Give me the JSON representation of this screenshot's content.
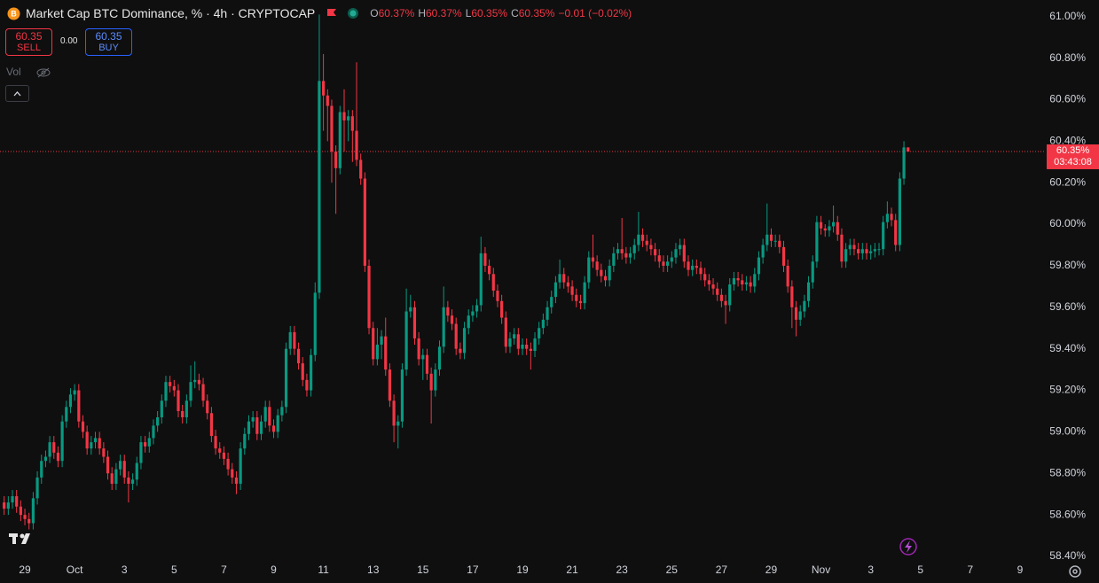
{
  "chart_data": {
    "type": "candlestick",
    "title": "Market Cap BTC Dominance, % · 4h · CRYPTOCAP",
    "header_ohlc": [
      {
        "key": "O",
        "value": "60.37%"
      },
      {
        "key": "H",
        "value": "60.37%"
      },
      {
        "key": "L",
        "value": "60.35%"
      },
      {
        "key": "C",
        "value": "60.35%"
      }
    ],
    "header_change": "−0.01 (−0.02%)",
    "sell": {
      "price": "60.35",
      "label": "SELL"
    },
    "spread": "0.00",
    "buy": {
      "price": "60.35",
      "label": "BUY"
    },
    "volume_label": "Vol",
    "last_price": {
      "value": 60.35,
      "label": "60.35%",
      "countdown": "03:43:08"
    },
    "up_color": "#089981",
    "down_color": "#f23645",
    "open": [
      58.66,
      58.63,
      58.66,
      58.69,
      58.64,
      58.6,
      58.58,
      58.56,
      58.68,
      58.78,
      58.86,
      58.88,
      58.95,
      58.9,
      58.86,
      59.05,
      59.12,
      59.18,
      59.2,
      59.05,
      59.0,
      58.92,
      58.95,
      58.97,
      58.92,
      58.88,
      58.8,
      58.75,
      58.82,
      58.86,
      58.78,
      58.75,
      58.77,
      58.85,
      58.95,
      58.93,
      58.97,
      59.03,
      59.07,
      59.15,
      59.24,
      59.22,
      59.2,
      59.1,
      59.07,
      59.15,
      59.24,
      59.25,
      59.23,
      59.15,
      59.09,
      58.98,
      58.92,
      58.9,
      58.87,
      58.82,
      58.78,
      58.75,
      58.92,
      58.99,
      59.05,
      59.07,
      58.99,
      59.05,
      59.12,
      59.03,
      59.0,
      59.08,
      59.12,
      59.4,
      59.48,
      59.4,
      59.33,
      59.25,
      59.2,
      59.37,
      59.67,
      60.69,
      60.62,
      60.57,
      60.35,
      60.27,
      60.54,
      60.5,
      60.52,
      60.45,
      60.31,
      60.22,
      59.8,
      59.5,
      59.35,
      59.42,
      59.46,
      59.3,
      59.15,
      59.03,
      59.05,
      59.3,
      59.58,
      59.6,
      59.45,
      59.35,
      59.37,
      59.28,
      59.2,
      59.3,
      59.41,
      59.6,
      59.56,
      59.52,
      59.4,
      59.38,
      59.5,
      59.56,
      59.58,
      59.61,
      59.86,
      59.8,
      59.76,
      59.68,
      59.63,
      59.55,
      59.41,
      59.45,
      59.47,
      59.4,
      59.42,
      59.4,
      59.39,
      59.45,
      59.5,
      59.54,
      59.6,
      59.65,
      59.72,
      59.76,
      59.72,
      59.7,
      59.66,
      59.63,
      59.62,
      59.72,
      59.84,
      59.82,
      59.78,
      59.75,
      59.73,
      59.8,
      59.86,
      59.88,
      59.86,
      59.84,
      59.86,
      59.9,
      59.95,
      59.92,
      59.9,
      59.88,
      59.85,
      59.82,
      59.8,
      59.82,
      59.84,
      59.88,
      59.9,
      59.82,
      59.78,
      59.8,
      59.79,
      59.76,
      59.73,
      59.71,
      59.69,
      59.66,
      59.63,
      59.61,
      59.71,
      59.74,
      59.73,
      59.71,
      59.72,
      59.7,
      59.76,
      59.84,
      59.9,
      59.95,
      59.92,
      59.92,
      59.89,
      59.8,
      59.7,
      59.6,
      59.54,
      59.58,
      59.63,
      59.72,
      59.82,
      60.01,
      59.98,
      59.97,
      59.99,
      60.01,
      59.95,
      59.82,
      59.88,
      59.9,
      59.88,
      59.86,
      59.88,
      59.86,
      59.87,
      59.88,
      59.88,
      60.01,
      60.05,
      60.02,
      59.9,
      60.22,
      60.37
    ],
    "high": [
      58.69,
      58.69,
      58.72,
      58.72,
      58.67,
      58.63,
      58.61,
      58.71,
      58.81,
      58.89,
      58.91,
      58.98,
      58.98,
      58.93,
      59.08,
      59.15,
      59.21,
      59.23,
      59.23,
      59.08,
      59.03,
      58.98,
      59.0,
      59.0,
      58.95,
      58.91,
      58.83,
      58.85,
      58.89,
      58.89,
      58.81,
      58.8,
      58.88,
      58.98,
      58.98,
      59.0,
      59.06,
      59.1,
      59.18,
      59.27,
      59.27,
      59.25,
      59.23,
      59.13,
      59.18,
      59.32,
      59.34,
      59.28,
      59.26,
      59.18,
      59.12,
      59.01,
      58.95,
      58.93,
      58.9,
      58.85,
      58.81,
      58.95,
      59.02,
      59.08,
      59.1,
      59.1,
      59.08,
      59.15,
      59.15,
      59.06,
      59.11,
      59.15,
      59.43,
      59.51,
      59.51,
      59.43,
      59.36,
      59.28,
      59.4,
      59.72,
      61.01,
      60.82,
      60.65,
      60.6,
      60.38,
      60.57,
      60.65,
      60.55,
      60.55,
      60.78,
      60.34,
      60.25,
      59.83,
      59.53,
      59.5,
      59.49,
      59.55,
      59.33,
      59.18,
      59.08,
      59.33,
      59.69,
      59.66,
      59.63,
      59.48,
      59.4,
      59.4,
      59.31,
      59.33,
      59.44,
      59.7,
      59.63,
      59.59,
      59.55,
      59.43,
      59.53,
      59.59,
      59.61,
      59.64,
      59.94,
      59.89,
      59.83,
      59.79,
      59.71,
      59.66,
      59.58,
      59.48,
      59.5,
      59.5,
      59.45,
      59.45,
      59.43,
      59.48,
      59.53,
      59.57,
      59.63,
      59.68,
      59.75,
      59.83,
      59.79,
      59.75,
      59.73,
      59.69,
      59.66,
      59.75,
      59.87,
      59.95,
      59.85,
      59.81,
      59.78,
      59.83,
      59.89,
      59.91,
      60.03,
      59.89,
      59.89,
      59.93,
      60.06,
      59.98,
      59.95,
      59.93,
      59.91,
      59.88,
      59.85,
      59.85,
      59.87,
      59.91,
      59.93,
      59.93,
      59.85,
      59.83,
      59.83,
      59.82,
      59.79,
      59.76,
      59.74,
      59.72,
      59.69,
      59.66,
      59.74,
      59.77,
      59.77,
      59.76,
      59.75,
      59.75,
      59.79,
      59.87,
      59.93,
      60.1,
      59.98,
      59.95,
      59.95,
      59.92,
      59.83,
      59.73,
      59.63,
      59.61,
      59.66,
      59.75,
      59.85,
      60.04,
      60.04,
      60.0,
      60.02,
      60.09,
      60.04,
      59.98,
      59.91,
      59.93,
      59.93,
      59.91,
      59.91,
      59.91,
      59.9,
      59.91,
      59.91,
      60.04,
      60.11,
      60.08,
      60.05,
      60.25,
      60.4,
      60.37
    ],
    "low": [
      58.6,
      58.6,
      58.63,
      58.61,
      58.57,
      58.55,
      58.53,
      58.53,
      58.65,
      58.75,
      58.83,
      58.85,
      58.87,
      58.83,
      58.83,
      59.02,
      59.09,
      59.15,
      59.02,
      58.97,
      58.89,
      58.89,
      58.92,
      58.89,
      58.85,
      58.77,
      58.72,
      58.72,
      58.79,
      58.75,
      58.66,
      58.72,
      58.74,
      58.82,
      58.9,
      58.9,
      58.94,
      59.0,
      59.04,
      59.12,
      59.19,
      59.17,
      59.07,
      59.04,
      59.04,
      59.12,
      59.21,
      59.2,
      59.12,
      59.06,
      58.95,
      58.89,
      58.87,
      58.84,
      58.79,
      58.75,
      58.7,
      58.72,
      58.89,
      58.96,
      59.02,
      58.96,
      58.96,
      59.02,
      59.0,
      58.97,
      58.97,
      59.05,
      59.09,
      59.37,
      59.37,
      59.3,
      59.22,
      59.17,
      59.17,
      59.34,
      59.64,
      60.45,
      60.4,
      60.2,
      60.05,
      60.24,
      60.35,
      60.4,
      60.3,
      60.28,
      60.19,
      59.77,
      59.47,
      59.32,
      59.32,
      59.35,
      59.27,
      59.12,
      58.95,
      58.92,
      59.02,
      59.27,
      59.55,
      59.42,
      59.32,
      59.25,
      59.25,
      59.04,
      59.17,
      59.27,
      59.38,
      59.53,
      59.49,
      59.37,
      59.35,
      59.35,
      59.47,
      59.53,
      59.55,
      59.58,
      59.77,
      59.73,
      59.65,
      59.6,
      59.52,
      59.38,
      59.38,
      59.42,
      59.37,
      59.37,
      59.37,
      59.3,
      59.36,
      59.42,
      59.47,
      59.51,
      59.57,
      59.62,
      59.69,
      59.69,
      59.67,
      59.63,
      59.6,
      59.59,
      59.59,
      59.69,
      59.79,
      59.75,
      59.72,
      59.7,
      59.7,
      59.77,
      59.83,
      59.83,
      59.81,
      59.81,
      59.83,
      59.87,
      59.89,
      59.87,
      59.85,
      59.82,
      59.79,
      59.77,
      59.77,
      59.79,
      59.81,
      59.85,
      59.79,
      59.75,
      59.75,
      59.76,
      59.73,
      59.7,
      59.68,
      59.66,
      59.63,
      59.6,
      59.52,
      59.58,
      59.68,
      59.7,
      59.68,
      59.68,
      59.67,
      59.67,
      59.73,
      59.81,
      59.87,
      59.89,
      59.89,
      59.86,
      59.77,
      59.67,
      59.5,
      59.46,
      59.51,
      59.55,
      59.6,
      59.69,
      59.79,
      59.95,
      59.94,
      59.94,
      59.96,
      59.92,
      59.79,
      59.79,
      59.85,
      59.85,
      59.83,
      59.83,
      59.83,
      59.83,
      59.84,
      59.85,
      59.85,
      59.98,
      59.99,
      59.87,
      59.87,
      60.19,
      60.35
    ],
    "close": [
      58.63,
      58.66,
      58.69,
      58.64,
      58.6,
      58.58,
      58.56,
      58.68,
      58.78,
      58.86,
      58.88,
      58.95,
      58.9,
      58.86,
      59.05,
      59.12,
      59.18,
      59.2,
      59.05,
      59.0,
      58.92,
      58.95,
      58.97,
      58.92,
      58.88,
      58.8,
      58.75,
      58.82,
      58.86,
      58.78,
      58.75,
      58.77,
      58.85,
      58.95,
      58.93,
      58.97,
      59.03,
      59.07,
      59.15,
      59.24,
      59.22,
      59.2,
      59.1,
      59.07,
      59.15,
      59.24,
      59.25,
      59.23,
      59.15,
      59.09,
      58.98,
      58.92,
      58.9,
      58.87,
      58.82,
      58.78,
      58.75,
      58.92,
      58.99,
      59.05,
      59.07,
      58.99,
      59.05,
      59.12,
      59.03,
      59.0,
      59.08,
      59.12,
      59.4,
      59.48,
      59.4,
      59.33,
      59.25,
      59.2,
      59.37,
      59.67,
      60.69,
      60.62,
      60.57,
      60.35,
      60.27,
      60.54,
      60.5,
      60.52,
      60.45,
      60.31,
      60.22,
      59.8,
      59.5,
      59.35,
      59.42,
      59.46,
      59.3,
      59.15,
      59.03,
      59.05,
      59.3,
      59.58,
      59.6,
      59.45,
      59.35,
      59.37,
      59.28,
      59.2,
      59.3,
      59.41,
      59.6,
      59.56,
      59.52,
      59.4,
      59.38,
      59.5,
      59.56,
      59.58,
      59.61,
      59.86,
      59.8,
      59.76,
      59.68,
      59.63,
      59.55,
      59.41,
      59.45,
      59.47,
      59.4,
      59.42,
      59.4,
      59.39,
      59.45,
      59.5,
      59.54,
      59.6,
      59.65,
      59.72,
      59.76,
      59.72,
      59.7,
      59.66,
      59.63,
      59.62,
      59.72,
      59.84,
      59.82,
      59.78,
      59.75,
      59.73,
      59.8,
      59.86,
      59.88,
      59.86,
      59.84,
      59.86,
      59.9,
      59.95,
      59.92,
      59.9,
      59.88,
      59.85,
      59.82,
      59.8,
      59.82,
      59.84,
      59.88,
      59.9,
      59.82,
      59.78,
      59.8,
      59.79,
      59.76,
      59.73,
      59.71,
      59.69,
      59.66,
      59.63,
      59.61,
      59.71,
      59.74,
      59.73,
      59.71,
      59.72,
      59.7,
      59.76,
      59.84,
      59.9,
      59.95,
      59.92,
      59.92,
      59.89,
      59.8,
      59.7,
      59.6,
      59.54,
      59.58,
      59.63,
      59.72,
      59.82,
      60.01,
      59.98,
      59.97,
      59.99,
      60.01,
      59.95,
      59.82,
      59.88,
      59.9,
      59.88,
      59.86,
      59.88,
      59.86,
      59.87,
      59.88,
      59.88,
      60.01,
      60.05,
      60.02,
      59.9,
      60.22,
      60.37,
      60.35
    ],
    "xlim": [
      -1,
      251
    ],
    "xticks": [
      {
        "value": 5,
        "label": "29"
      },
      {
        "value": 17,
        "label": "Oct"
      },
      {
        "value": 29,
        "label": "3"
      },
      {
        "value": 41,
        "label": "5"
      },
      {
        "value": 53,
        "label": "7"
      },
      {
        "value": 65,
        "label": "9"
      },
      {
        "value": 77,
        "label": "11"
      },
      {
        "value": 89,
        "label": "13"
      },
      {
        "value": 101,
        "label": "15"
      },
      {
        "value": 113,
        "label": "17"
      },
      {
        "value": 125,
        "label": "19"
      },
      {
        "value": 137,
        "label": "21"
      },
      {
        "value": 149,
        "label": "23"
      },
      {
        "value": 161,
        "label": "25"
      },
      {
        "value": 173,
        "label": "27"
      },
      {
        "value": 185,
        "label": "29"
      },
      {
        "value": 197,
        "label": "Nov"
      },
      {
        "value": 209,
        "label": "3"
      },
      {
        "value": 221,
        "label": "5"
      },
      {
        "value": 233,
        "label": "7"
      },
      {
        "value": 245,
        "label": "9"
      }
    ],
    "ylim": [
      58.4,
      61.08
    ],
    "yticks": [
      {
        "value": 58.4,
        "label": "58.40%"
      },
      {
        "value": 58.6,
        "label": "58.60%"
      },
      {
        "value": 58.8,
        "label": "58.80%"
      },
      {
        "value": 59.0,
        "label": "59.00%"
      },
      {
        "value": 59.2,
        "label": "59.20%"
      },
      {
        "value": 59.4,
        "label": "59.40%"
      },
      {
        "value": 59.6,
        "label": "59.60%"
      },
      {
        "value": 59.8,
        "label": "59.80%"
      },
      {
        "value": 60.0,
        "label": "60.00%"
      },
      {
        "value": 60.2,
        "label": "60.20%"
      },
      {
        "value": 60.4,
        "label": "60.40%"
      },
      {
        "value": 60.6,
        "label": "60.60%"
      },
      {
        "value": 60.8,
        "label": "60.80%"
      },
      {
        "value": 61.0,
        "label": "61.00%"
      }
    ],
    "grid": false
  }
}
